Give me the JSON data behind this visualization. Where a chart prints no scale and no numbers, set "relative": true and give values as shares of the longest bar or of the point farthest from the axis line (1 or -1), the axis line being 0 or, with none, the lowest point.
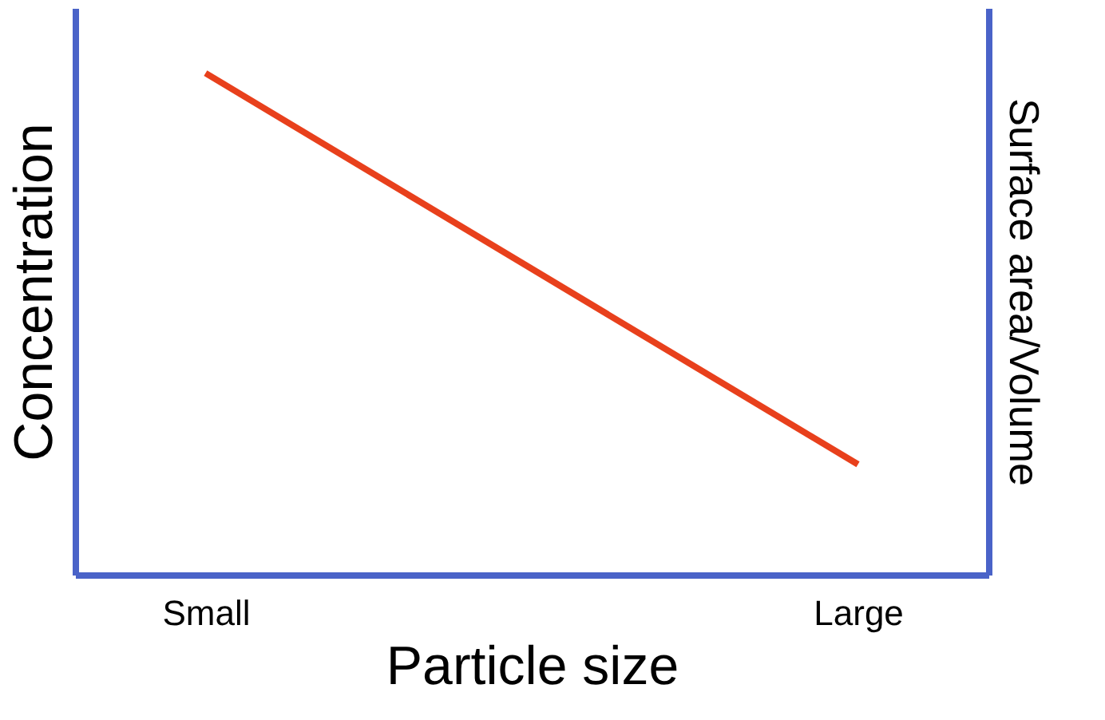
{
  "chart_data": {
    "type": "line",
    "xlabel": "Particle size",
    "ylabel": "Concentration",
    "y2label": "Surface area/Volume",
    "categories": [
      "Small",
      "Large"
    ],
    "relative": true,
    "tick_labels": "x",
    "series": [
      {
        "color": "#e8401c",
        "values": [
          1,
          0.22
        ]
      }
    ]
  }
}
